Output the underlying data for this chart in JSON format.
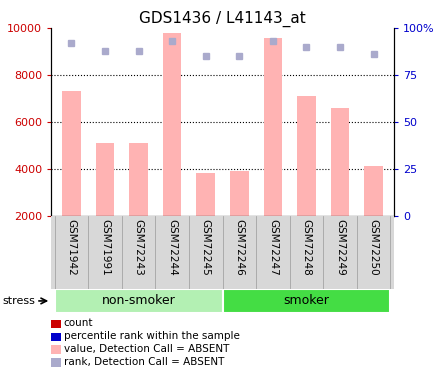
{
  "title": "GDS1436 / L41143_at",
  "samples": [
    "GSM71942",
    "GSM71991",
    "GSM72243",
    "GSM72244",
    "GSM72245",
    "GSM72246",
    "GSM72247",
    "GSM72248",
    "GSM72249",
    "GSM72250"
  ],
  "bar_values": [
    7300,
    5100,
    5100,
    9800,
    3800,
    3900,
    9600,
    7100,
    6600,
    4100
  ],
  "dot_values_pct": [
    92,
    88,
    88,
    93,
    85,
    85,
    93,
    90,
    90,
    86
  ],
  "bar_color": "#ffb3b3",
  "dot_color": "#aaaacc",
  "ylim_left": [
    2000,
    10000
  ],
  "ylim_right": [
    0,
    100
  ],
  "yticks_left": [
    2000,
    4000,
    6000,
    8000,
    10000
  ],
  "yticks_right": [
    0,
    25,
    50,
    75,
    100
  ],
  "ytick_labels_right": [
    "0",
    "25",
    "50",
    "75",
    "100%"
  ],
  "groups": [
    {
      "label": "non-smoker",
      "start": 0,
      "end": 4,
      "color": "#b3f0b3"
    },
    {
      "label": "smoker",
      "start": 5,
      "end": 9,
      "color": "#44dd44"
    }
  ],
  "stress_label": "stress",
  "legend_items": [
    {
      "label": "count",
      "color": "#cc0000"
    },
    {
      "label": "percentile rank within the sample",
      "color": "#0000cc"
    },
    {
      "label": "value, Detection Call = ABSENT",
      "color": "#ffb3b3"
    },
    {
      "label": "rank, Detection Call = ABSENT",
      "color": "#aaaacc"
    }
  ],
  "bar_width": 0.55,
  "tick_fontsize": 8,
  "sample_fontsize": 7.5,
  "title_fontsize": 11,
  "group_label_fontsize": 9,
  "legend_fontsize": 7.5,
  "tick_label_color_left": "#cc0000",
  "tick_label_color_right": "#0000cc",
  "xtick_bg_color": "#d8d8d8",
  "nonsmoker_color": "#b8f0b8",
  "smoker_color": "#44dd44"
}
